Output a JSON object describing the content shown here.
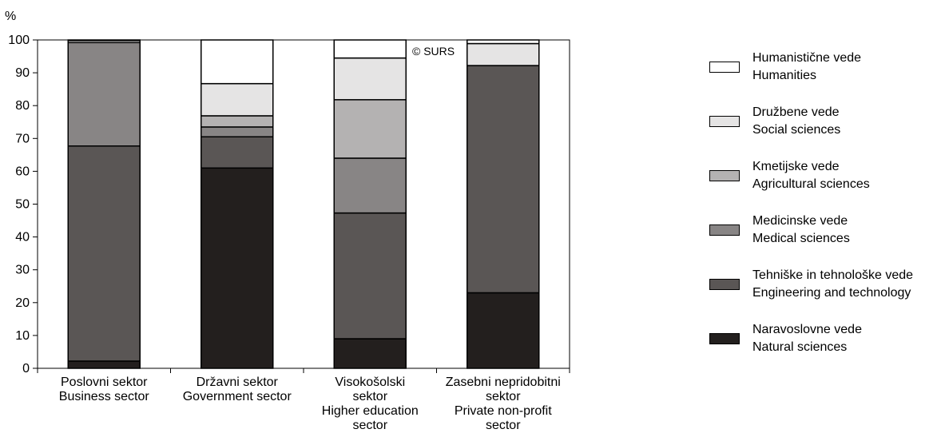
{
  "chart_data": {
    "type": "bar",
    "stacked": true,
    "y_unit_label": "%",
    "ylim": [
      0,
      100
    ],
    "yticks": [
      0,
      10,
      20,
      30,
      40,
      50,
      60,
      70,
      80,
      90,
      100
    ],
    "grid": false,
    "watermark": "© SURS",
    "legend_position": "right",
    "categories": [
      [
        "Poslovni sektor",
        "Business sector"
      ],
      [
        "Državni sektor",
        "Government sector"
      ],
      [
        "Visokošolski",
        "sektor",
        "Higher education",
        "sector"
      ],
      [
        "Zasebni nepridobitni",
        "sektor",
        "Private non-profit",
        "sector"
      ]
    ],
    "series": [
      {
        "name": [
          "Naravoslovne vede",
          "Natural sciences"
        ],
        "color": "#231f1e",
        "values": [
          2.2,
          61,
          9,
          23
        ]
      },
      {
        "name": [
          "Tehniške in tehnološke vede",
          "Engineering and technology"
        ],
        "color": "#5a5655",
        "values": [
          65.5,
          9.5,
          38.3,
          69.2
        ]
      },
      {
        "name": [
          "Medicinske vede",
          "Medical sciences"
        ],
        "color": "#888585",
        "values": [
          31.5,
          3,
          16.7,
          0
        ]
      },
      {
        "name": [
          "Kmetijske vede",
          "Agricultural sciences"
        ],
        "color": "#b4b2b2",
        "values": [
          0,
          3.4,
          17.8,
          0
        ]
      },
      {
        "name": [
          "Družbene vede",
          "Social sciences"
        ],
        "color": "#e5e4e4",
        "values": [
          0.6,
          9.8,
          12.7,
          6.7
        ]
      },
      {
        "name": [
          "Humanistične vede",
          "Humanities"
        ],
        "color": "#ffffff",
        "values": [
          0.2,
          13.3,
          5.5,
          1.1
        ]
      }
    ]
  }
}
